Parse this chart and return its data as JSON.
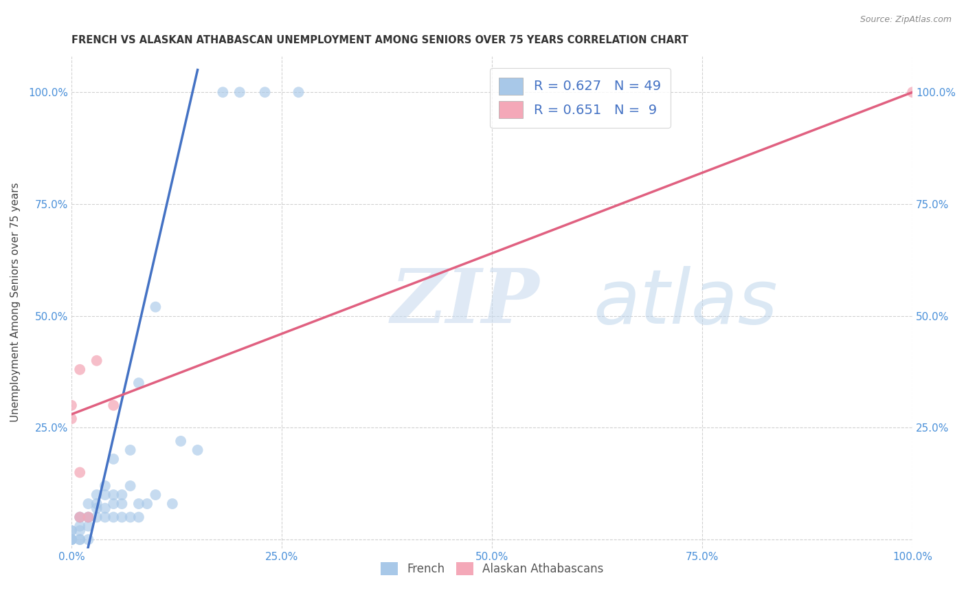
{
  "title": "FRENCH VS ALASKAN ATHABASCAN UNEMPLOYMENT AMONG SENIORS OVER 75 YEARS CORRELATION CHART",
  "source": "Source: ZipAtlas.com",
  "ylabel": "Unemployment Among Seniors over 75 years",
  "french_R": 0.627,
  "french_N": 49,
  "athabascan_R": 0.651,
  "athabascan_N": 9,
  "french_color": "#a8c8e8",
  "athabascan_color": "#f4a8b8",
  "french_line_color": "#4472c4",
  "athabascan_line_color": "#e06080",
  "french_scatter": [
    [
      0.0,
      0.0
    ],
    [
      0.0,
      0.0
    ],
    [
      0.0,
      0.0
    ],
    [
      0.0,
      0.0
    ],
    [
      0.0,
      0.0
    ],
    [
      0.0,
      0.02
    ],
    [
      0.0,
      0.02
    ],
    [
      0.01,
      0.0
    ],
    [
      0.01,
      0.0
    ],
    [
      0.01,
      0.02
    ],
    [
      0.01,
      0.03
    ],
    [
      0.01,
      0.05
    ],
    [
      0.01,
      0.05
    ],
    [
      0.02,
      0.0
    ],
    [
      0.02,
      0.03
    ],
    [
      0.02,
      0.05
    ],
    [
      0.02,
      0.05
    ],
    [
      0.02,
      0.08
    ],
    [
      0.03,
      0.05
    ],
    [
      0.03,
      0.07
    ],
    [
      0.03,
      0.08
    ],
    [
      0.03,
      0.1
    ],
    [
      0.04,
      0.05
    ],
    [
      0.04,
      0.07
    ],
    [
      0.04,
      0.1
    ],
    [
      0.04,
      0.12
    ],
    [
      0.05,
      0.05
    ],
    [
      0.05,
      0.08
    ],
    [
      0.05,
      0.1
    ],
    [
      0.05,
      0.18
    ],
    [
      0.06,
      0.05
    ],
    [
      0.06,
      0.08
    ],
    [
      0.06,
      0.1
    ],
    [
      0.07,
      0.05
    ],
    [
      0.07,
      0.12
    ],
    [
      0.07,
      0.2
    ],
    [
      0.08,
      0.05
    ],
    [
      0.08,
      0.08
    ],
    [
      0.08,
      0.35
    ],
    [
      0.09,
      0.08
    ],
    [
      0.1,
      0.1
    ],
    [
      0.1,
      0.52
    ],
    [
      0.12,
      0.08
    ],
    [
      0.13,
      0.22
    ],
    [
      0.15,
      0.2
    ],
    [
      0.18,
      1.0
    ],
    [
      0.2,
      1.0
    ],
    [
      0.23,
      1.0
    ],
    [
      0.27,
      1.0
    ]
  ],
  "athabascan_scatter": [
    [
      0.0,
      0.27
    ],
    [
      0.0,
      0.3
    ],
    [
      0.01,
      0.05
    ],
    [
      0.01,
      0.15
    ],
    [
      0.01,
      0.38
    ],
    [
      0.02,
      0.05
    ],
    [
      0.03,
      0.4
    ],
    [
      0.05,
      0.3
    ],
    [
      1.0,
      1.0
    ]
  ],
  "french_line": [
    [
      0.0,
      -0.18
    ],
    [
      0.15,
      1.05
    ]
  ],
  "athabascan_line": [
    [
      0.0,
      0.28
    ],
    [
      1.0,
      1.0
    ]
  ],
  "xlim": [
    0.0,
    1.0
  ],
  "ylim": [
    -0.02,
    1.08
  ],
  "xticks": [
    0.0,
    0.25,
    0.5,
    0.75,
    1.0
  ],
  "xtick_labels": [
    "0.0%",
    "25.0%",
    "50.0%",
    "75.0%",
    "100.0%"
  ],
  "yticks": [
    0.0,
    0.25,
    0.5,
    0.75,
    1.0
  ],
  "ytick_labels": [
    "",
    "25.0%",
    "50.0%",
    "75.0%",
    "100.0%"
  ],
  "watermark_zip": "ZIP",
  "watermark_atlas": "atlas",
  "background_color": "#ffffff",
  "grid_color": "#cccccc",
  "title_color": "#333333",
  "axis_color": "#4a90d9",
  "legend_R_color": "#4472c4",
  "source_color": "#888888"
}
